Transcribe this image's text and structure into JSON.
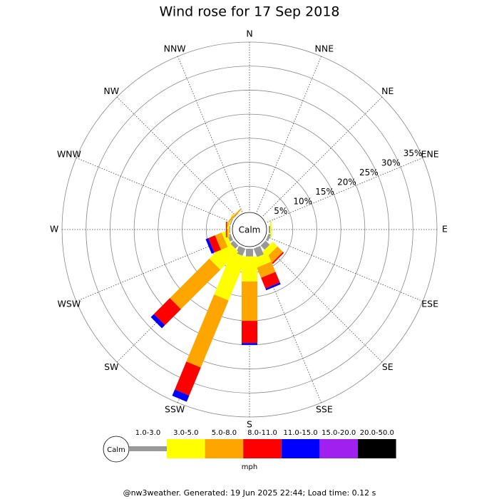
{
  "chart_data": {
    "type": "windrose",
    "title": "Wind rose for 17 Sep 2018",
    "calm_label": "Calm",
    "directions": [
      "N",
      "NNE",
      "NE",
      "ENE",
      "E",
      "ESE",
      "SE",
      "SSE",
      "S",
      "SSW",
      "SW",
      "WSW",
      "W",
      "WNW",
      "NW",
      "NNW"
    ],
    "ylim": [
      0,
      35
    ],
    "yticks": [
      {
        "value": 5,
        "label": "5%"
      },
      {
        "value": 10,
        "label": "10%"
      },
      {
        "value": 15,
        "label": "15%"
      },
      {
        "value": 20,
        "label": "20%"
      },
      {
        "value": 25,
        "label": "25%"
      },
      {
        "value": 30,
        "label": "30%"
      },
      {
        "value": 35,
        "label": "35%"
      }
    ],
    "grid": true,
    "unit": "mph",
    "series": [
      {
        "name": "1.0-3.0",
        "color": "#999999",
        "values": [
          0,
          0,
          0,
          0,
          0.3,
          0.5,
          1.2,
          1.9,
          1.6,
          1.6,
          0.9,
          0.7,
          0.2,
          0.2,
          0.1,
          0
        ]
      },
      {
        "name": "3.0-5.0",
        "color": "#ffff00",
        "values": [
          0,
          0,
          0,
          0,
          0.3,
          0,
          1.4,
          2.0,
          5.2,
          9.7,
          5.3,
          0.9,
          0.2,
          0.2,
          0,
          0
        ]
      },
      {
        "name": "5.0-8.0",
        "color": "#ffa500",
        "values": [
          0,
          0,
          0,
          0,
          0,
          0,
          1.6,
          2.3,
          8.2,
          15.1,
          11.6,
          1.5,
          0.3,
          0.1,
          0.3,
          0
        ]
      },
      {
        "name": "8.0-11.0",
        "color": "#ff0000",
        "values": [
          0,
          0,
          0,
          0,
          0,
          0,
          0.3,
          2.4,
          4.6,
          6.3,
          4.7,
          1.5,
          0.2,
          0,
          0,
          0
        ]
      },
      {
        "name": "11.0-15.0",
        "color": "#0000ff",
        "values": [
          0,
          0,
          0,
          0,
          0,
          0,
          0,
          0.4,
          0.4,
          1.4,
          0.9,
          0.6,
          0,
          0,
          0,
          0
        ]
      },
      {
        "name": "15.0-20.0",
        "color": "#a020f0",
        "values": [
          0,
          0,
          0,
          0,
          0,
          0,
          0,
          0,
          0,
          0,
          0,
          0,
          0,
          0,
          0,
          0
        ]
      },
      {
        "name": "20.0-50.0",
        "color": "#000000",
        "values": [
          0,
          0,
          0,
          0,
          0,
          0,
          0,
          0,
          0,
          0,
          0,
          0,
          0,
          0,
          0,
          0
        ]
      }
    ],
    "footer": "@nw3weather. Generated: 19 Jun 2025 22:44; Load time: 0.12 s"
  }
}
